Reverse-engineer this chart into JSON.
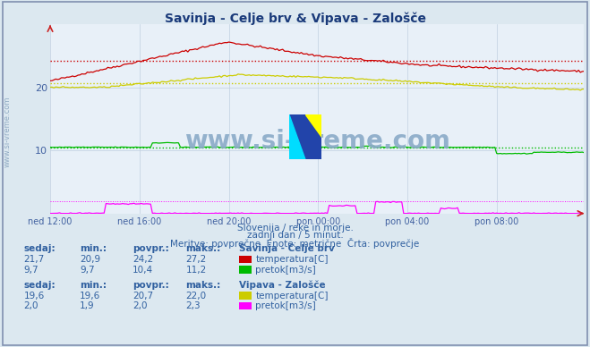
{
  "title": "Savinja - Celje brv & Vipava - Zalošče",
  "bg_color": "#dce8f0",
  "plot_bg_color": "#e8f0f8",
  "title_color": "#1a3a7a",
  "axis_label_color": "#4060a0",
  "text_color": "#3060a0",
  "grid_color": "#c0d0e0",
  "xlabel_ticks": [
    "ned 12:00",
    "ned 16:00",
    "ned 20:00",
    "pon 00:00",
    "pon 04:00",
    "pon 08:00"
  ],
  "xtick_positions": [
    0,
    48,
    96,
    144,
    192,
    240
  ],
  "n_points": 288,
  "ylim": [
    0,
    30
  ],
  "yticks": [
    10,
    20
  ],
  "savinja_temp_avg": 24.2,
  "savinja_pretok_avg": 10.4,
  "vipava_temp_avg": 20.7,
  "vipava_pretok_avg": 2.0,
  "color_savinja_temp": "#cc0000",
  "color_savinja_pretok": "#00bb00",
  "color_vipava_temp": "#cccc00",
  "color_vipava_pretok": "#ff00ff",
  "watermark": "www.si-vreme.com",
  "subtitle1": "Slovenija / reke in morje.",
  "subtitle2": "zadnji dan / 5 minut.",
  "subtitle3": "Meritve: povprečne  Enote: metrične  Črta: povprečje",
  "stat_headers": [
    "sedaj:",
    "min.:",
    "povpr.:",
    "maks.:"
  ],
  "savinja_label": "Savinja - Celje brv",
  "savinja_temp_row": [
    "21,7",
    "20,9",
    "24,2",
    "27,2"
  ],
  "savinja_pretok_row": [
    "9,7",
    "9,7",
    "10,4",
    "11,2"
  ],
  "savinja_temp_label": "temperatura[C]",
  "savinja_pretok_label": "pretok[m3/s]",
  "vipava_label": "Vipava - Zalošče",
  "vipava_temp_row": [
    "19,6",
    "19,6",
    "20,7",
    "22,0"
  ],
  "vipava_pretok_row": [
    "2,0",
    "1,9",
    "2,0",
    "2,3"
  ],
  "vipava_temp_label": "temperatura[C]",
  "vipava_pretok_label": "pretok[m3/s]"
}
